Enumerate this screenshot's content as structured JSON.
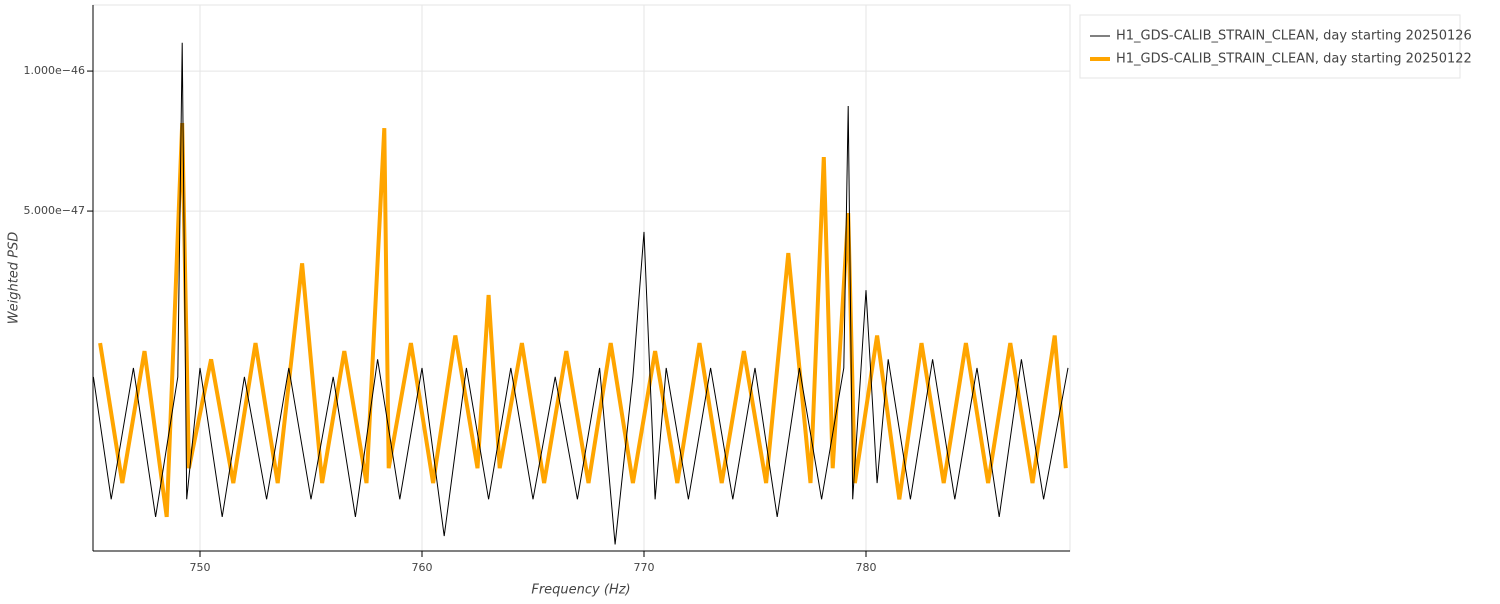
{
  "chart_data": {
    "type": "line",
    "x_label": "Frequency (Hz)",
    "y_label": "Weighted PSD",
    "xlim": [
      745.18,
      789.19
    ],
    "ylim": [
      9.29e-48,
      1.387e-46
    ],
    "log_y": true,
    "grid": true,
    "legend": "right",
    "xticks": [
      750,
      760,
      770,
      780
    ],
    "yticks": [
      {
        "value": 1e-46,
        "label": "1.000e−46"
      },
      {
        "value": 5e-47,
        "label": "5.000e−47"
      }
    ],
    "series": [
      {
        "name": "H1_GDS-CALIB_STRAIN_CLEAN, day starting 20250126",
        "color": "#000000",
        "x": [
          745.2,
          746.0,
          747.0,
          748.0,
          749.0,
          749.2,
          749.4,
          750.0,
          751.0,
          752.0,
          753.0,
          754.0,
          755.0,
          756.0,
          757.0,
          758.0,
          759.0,
          760.0,
          761.0,
          762.0,
          763.0,
          764.0,
          765.0,
          766.0,
          767.0,
          768.0,
          768.7,
          769.5,
          770.0,
          770.5,
          771.0,
          772.0,
          773.0,
          774.0,
          775.0,
          776.0,
          777.0,
          778.0,
          779.0,
          779.2,
          779.4,
          780.0,
          780.5,
          781.0,
          782.0,
          783.0,
          784.0,
          785.0,
          786.0,
          787.0,
          788.0,
          789.1
        ],
        "values": [
          2.2e-47,
          1.2e-47,
          2.3e-47,
          1.1e-47,
          2.2e-47,
          1.15e-46,
          1.2e-47,
          2.3e-47,
          1.1e-47,
          2.2e-47,
          1.2e-47,
          2.3e-47,
          1.2e-47,
          2.2e-47,
          1.1e-47,
          2.4e-47,
          1.2e-47,
          2.3e-47,
          1e-47,
          2.3e-47,
          1.2e-47,
          2.3e-47,
          1.2e-47,
          2.2e-47,
          1.2e-47,
          2.3e-47,
          9.6e-48,
          2.2e-47,
          4.51e-47,
          1.2e-47,
          2.3e-47,
          1.2e-47,
          2.3e-47,
          1.2e-47,
          2.3e-47,
          1.1e-47,
          2.3e-47,
          1.2e-47,
          2.3e-47,
          8.41e-47,
          1.2e-47,
          3.38e-47,
          1.3e-47,
          2.4e-47,
          1.2e-47,
          2.4e-47,
          1.2e-47,
          2.3e-47,
          1.1e-47,
          2.4e-47,
          1.2e-47,
          2.3e-47
        ]
      },
      {
        "name": "H1_GDS-CALIB_STRAIN_CLEAN, day starting 20250122",
        "color": "#ffa500",
        "x": [
          745.5,
          746.5,
          747.5,
          748.5,
          749.2,
          749.5,
          750.5,
          751.5,
          752.5,
          753.5,
          754.6,
          755.5,
          756.5,
          757.5,
          758.3,
          758.5,
          759.5,
          760.5,
          761.5,
          762.5,
          763.0,
          763.5,
          764.5,
          765.5,
          766.5,
          767.5,
          768.5,
          769.5,
          770.5,
          771.5,
          772.5,
          773.5,
          774.5,
          775.5,
          776.5,
          777.5,
          778.1,
          778.5,
          779.2,
          779.5,
          780.5,
          781.5,
          782.5,
          783.5,
          784.5,
          785.5,
          786.5,
          787.5,
          788.5,
          789.0
        ],
        "values": [
          2.6e-47,
          1.3e-47,
          2.5e-47,
          1.1e-47,
          7.73e-47,
          1.4e-47,
          2.4e-47,
          1.3e-47,
          2.6e-47,
          1.3e-47,
          3.86e-47,
          1.3e-47,
          2.5e-47,
          1.3e-47,
          7.54e-47,
          1.4e-47,
          2.6e-47,
          1.3e-47,
          2.7e-47,
          1.4e-47,
          3.3e-47,
          1.4e-47,
          2.6e-47,
          1.3e-47,
          2.5e-47,
          1.3e-47,
          2.6e-47,
          1.3e-47,
          2.5e-47,
          1.3e-47,
          2.6e-47,
          1.3e-47,
          2.5e-47,
          1.3e-47,
          4.06e-47,
          1.3e-47,
          6.53e-47,
          1.4e-47,
          4.95e-47,
          1.3e-47,
          2.7e-47,
          1.2e-47,
          2.6e-47,
          1.3e-47,
          2.6e-47,
          1.3e-47,
          2.6e-47,
          1.3e-47,
          2.7e-47,
          1.4e-47
        ]
      }
    ]
  }
}
